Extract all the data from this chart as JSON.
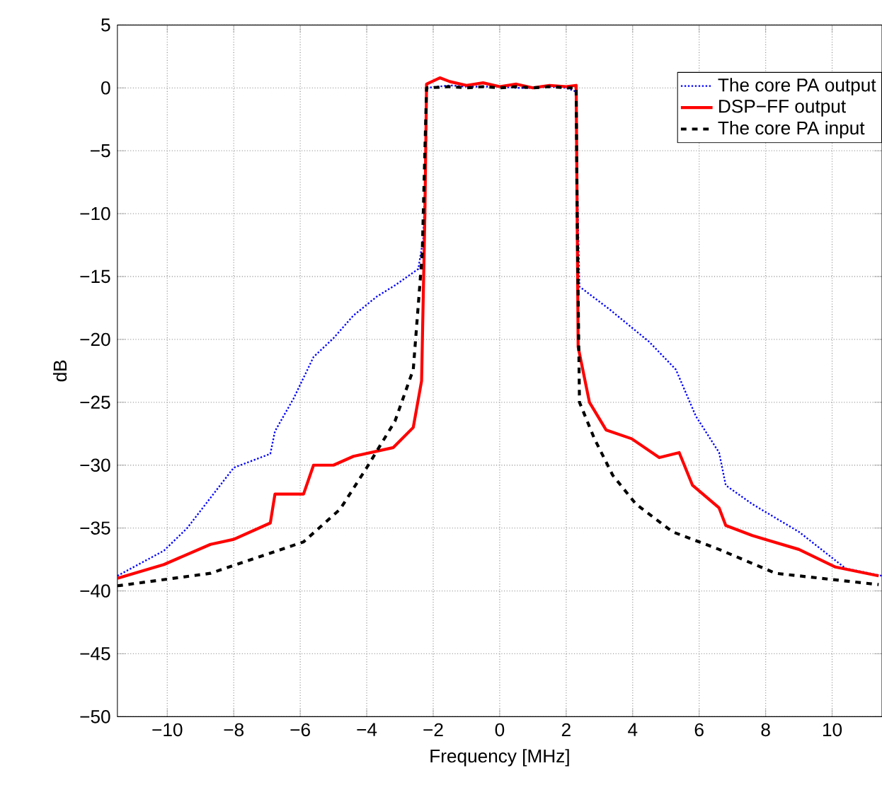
{
  "chart_data": {
    "type": "line",
    "xlabel": "Frequency [MHz]",
    "ylabel": "dB",
    "xlim": [
      -11.5,
      11.5
    ],
    "ylim": [
      -50,
      5
    ],
    "xticks": [
      {
        "value": -10,
        "label": "−10"
      },
      {
        "value": -8,
        "label": "−8"
      },
      {
        "value": -6,
        "label": "−6"
      },
      {
        "value": -4,
        "label": "−4"
      },
      {
        "value": -2,
        "label": "−2"
      },
      0,
      2,
      4,
      6,
      8,
      10
    ],
    "yticks": [
      {
        "value": -50,
        "label": "−50"
      },
      {
        "value": -45,
        "label": "−45"
      },
      {
        "value": -40,
        "label": "−40"
      },
      {
        "value": -35,
        "label": "−35"
      },
      {
        "value": -30,
        "label": "−30"
      },
      {
        "value": -25,
        "label": "−25"
      },
      {
        "value": -20,
        "label": "−20"
      },
      {
        "value": -15,
        "label": "−15"
      },
      {
        "value": -10,
        "label": "−10"
      },
      {
        "value": -5,
        "label": "−5"
      },
      0,
      5
    ],
    "grid": true,
    "legend": "top right",
    "series": [
      {
        "name": "The core PA output",
        "color": "#0000ff",
        "line_style": "dotted",
        "x": [
          -11.5,
          -10.1,
          -9.4,
          -8.0,
          -6.9,
          -6.76,
          -6.2,
          -5.6,
          -5.0,
          -4.4,
          -3.7,
          -3.15,
          -2.45,
          -2.3,
          -2.25,
          -2.2,
          -1.5,
          -1.0,
          -0.5,
          0,
          0.5,
          1.0,
          1.5,
          2.0,
          2.3,
          2.35,
          2.4,
          3.3,
          4.5,
          5.3,
          5.9,
          6.6,
          6.8,
          7.6,
          9.0,
          10.4,
          11.5
        ],
        "values": [
          -38.8,
          -36.8,
          -35.0,
          -30.2,
          -29.1,
          -27.3,
          -24.7,
          -21.4,
          -19.9,
          -18.1,
          -16.6,
          -15.7,
          -14.4,
          -12,
          -8,
          0,
          0.2,
          0.1,
          0.1,
          0.1,
          0,
          0,
          0.1,
          0,
          -0.3,
          -10,
          -15.8,
          -17.6,
          -20.2,
          -22.4,
          -26.1,
          -29.0,
          -31.6,
          -33.1,
          -35.3,
          -38.2,
          -38.8
        ]
      },
      {
        "name": "DSP−FF output",
        "color": "#ff0000",
        "line_style": "solid",
        "x": [
          -11.5,
          -10.1,
          -8.7,
          -8.0,
          -6.9,
          -6.76,
          -5.9,
          -5.6,
          -5.0,
          -4.4,
          -3.2,
          -2.6,
          -2.35,
          -2.25,
          -2.2,
          -1.8,
          -1.5,
          -1.0,
          -0.5,
          0,
          0.5,
          1.0,
          1.5,
          2.0,
          2.3,
          2.33,
          2.36,
          2.7,
          3.2,
          3.97,
          4.8,
          5.4,
          5.8,
          6.6,
          6.8,
          7.6,
          9.0,
          10.1,
          11.4
        ],
        "values": [
          -39.0,
          -37.9,
          -36.3,
          -35.9,
          -34.6,
          -32.3,
          -32.3,
          -30.0,
          -30.0,
          -29.3,
          -28.6,
          -27.0,
          -23.3,
          -10,
          0.3,
          0.8,
          0.5,
          0.2,
          0.4,
          0.1,
          0.3,
          0,
          0.2,
          0.1,
          0.2,
          -10,
          -20.6,
          -25.0,
          -27.2,
          -27.9,
          -29.4,
          -29.0,
          -31.6,
          -33.4,
          -34.8,
          -35.6,
          -36.7,
          -38.1,
          -38.8
        ]
      },
      {
        "name": "The core PA input",
        "color": "#000000",
        "line_style": "dashed",
        "x": [
          -11.5,
          -8.7,
          -5.9,
          -4.8,
          -4.0,
          -3.15,
          -2.6,
          -2.33,
          -2.25,
          -2.2,
          -1.5,
          -1.0,
          -0.5,
          0,
          0.5,
          1.0,
          1.5,
          2.0,
          2.3,
          2.33,
          2.4,
          2.85,
          3.4,
          4.1,
          5.2,
          6.6,
          8.3,
          11.4
        ],
        "values": [
          -39.6,
          -38.6,
          -36.1,
          -33.5,
          -30.2,
          -26.5,
          -22.4,
          -13.2,
          -5,
          0,
          0.1,
          0,
          0.1,
          0,
          0.1,
          0,
          0.1,
          0,
          0,
          -10,
          -25,
          -27.9,
          -30.8,
          -33.1,
          -35.3,
          -36.7,
          -38.6,
          -39.5
        ]
      }
    ]
  }
}
